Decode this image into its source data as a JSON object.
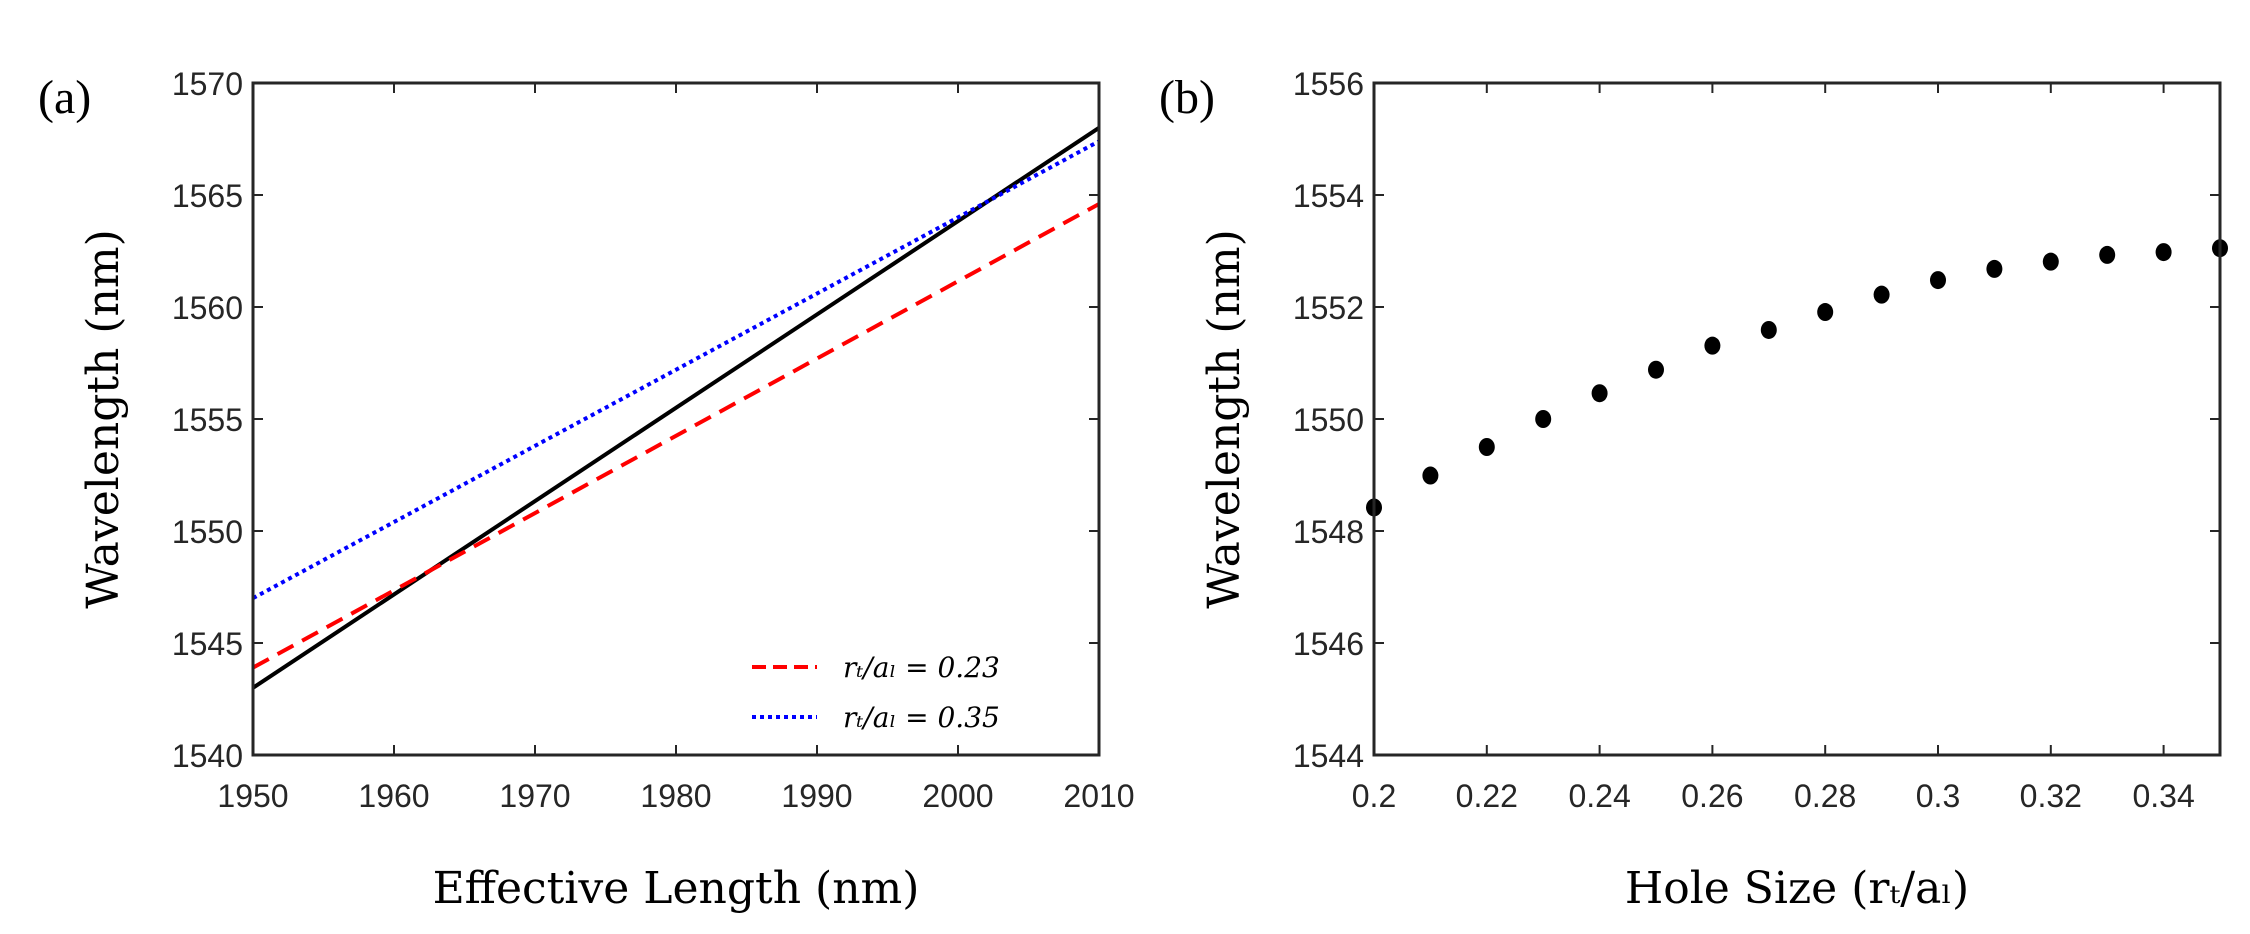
{
  "chart_data": [
    {
      "type": "line",
      "panel_label": "(a)",
      "xlabel": "Effective Length (nm)",
      "ylabel": "Wavelength (nm)",
      "xlim": [
        1950,
        2010
      ],
      "ylim": [
        1540,
        1570
      ],
      "xticks": [
        "1950",
        "1960",
        "1970",
        "1980",
        "1990",
        "2000",
        "2010"
      ],
      "yticks": [
        "1540",
        "1545",
        "1550",
        "1555",
        "1560",
        "1565",
        "1570"
      ],
      "grid": false,
      "legend_placement": "bottom-right",
      "series": [
        {
          "name": "",
          "color": "#000000",
          "style": "solid",
          "x": [
            1950,
            2010
          ],
          "y": [
            1543.0,
            1568.0
          ]
        },
        {
          "name": "r_t/a_L = 0.23",
          "legend_label": "rₜ/aₗ = 0.23",
          "color": "#ff0000",
          "style": "dashed",
          "x": [
            1950,
            2010
          ],
          "y": [
            1543.9,
            1564.6
          ]
        },
        {
          "name": "r_t/a_L = 0.35",
          "legend_label": "rₜ/aₗ = 0.35",
          "color": "#0000ff",
          "style": "dotted",
          "x": [
            1950,
            2010
          ],
          "y": [
            1547.0,
            1567.4
          ]
        }
      ]
    },
    {
      "type": "scatter",
      "panel_label": "(b)",
      "xlabel": "Hole Size (rₜ/aₗ)",
      "ylabel": "Wavelength (nm)",
      "xlim": [
        0.2,
        0.35
      ],
      "ylim": [
        1544,
        1556
      ],
      "xticks": [
        "0.2",
        "0.22",
        "0.24",
        "0.26",
        "0.28",
        "0.3",
        "0.32",
        "0.34"
      ],
      "yticks": [
        "1544",
        "1546",
        "1548",
        "1550",
        "1552",
        "1554",
        "1556"
      ],
      "grid": false,
      "series": [
        {
          "name": "",
          "color": "#000000",
          "x": [
            0.2,
            0.21,
            0.22,
            0.23,
            0.24,
            0.25,
            0.26,
            0.27,
            0.28,
            0.29,
            0.3,
            0.31,
            0.32,
            0.33,
            0.34,
            0.35
          ],
          "y": [
            1548.42,
            1548.99,
            1549.5,
            1550.0,
            1550.46,
            1550.88,
            1551.31,
            1551.59,
            1551.91,
            1552.22,
            1552.48,
            1552.68,
            1552.81,
            1552.93,
            1552.98,
            1553.05
          ]
        }
      ]
    }
  ]
}
